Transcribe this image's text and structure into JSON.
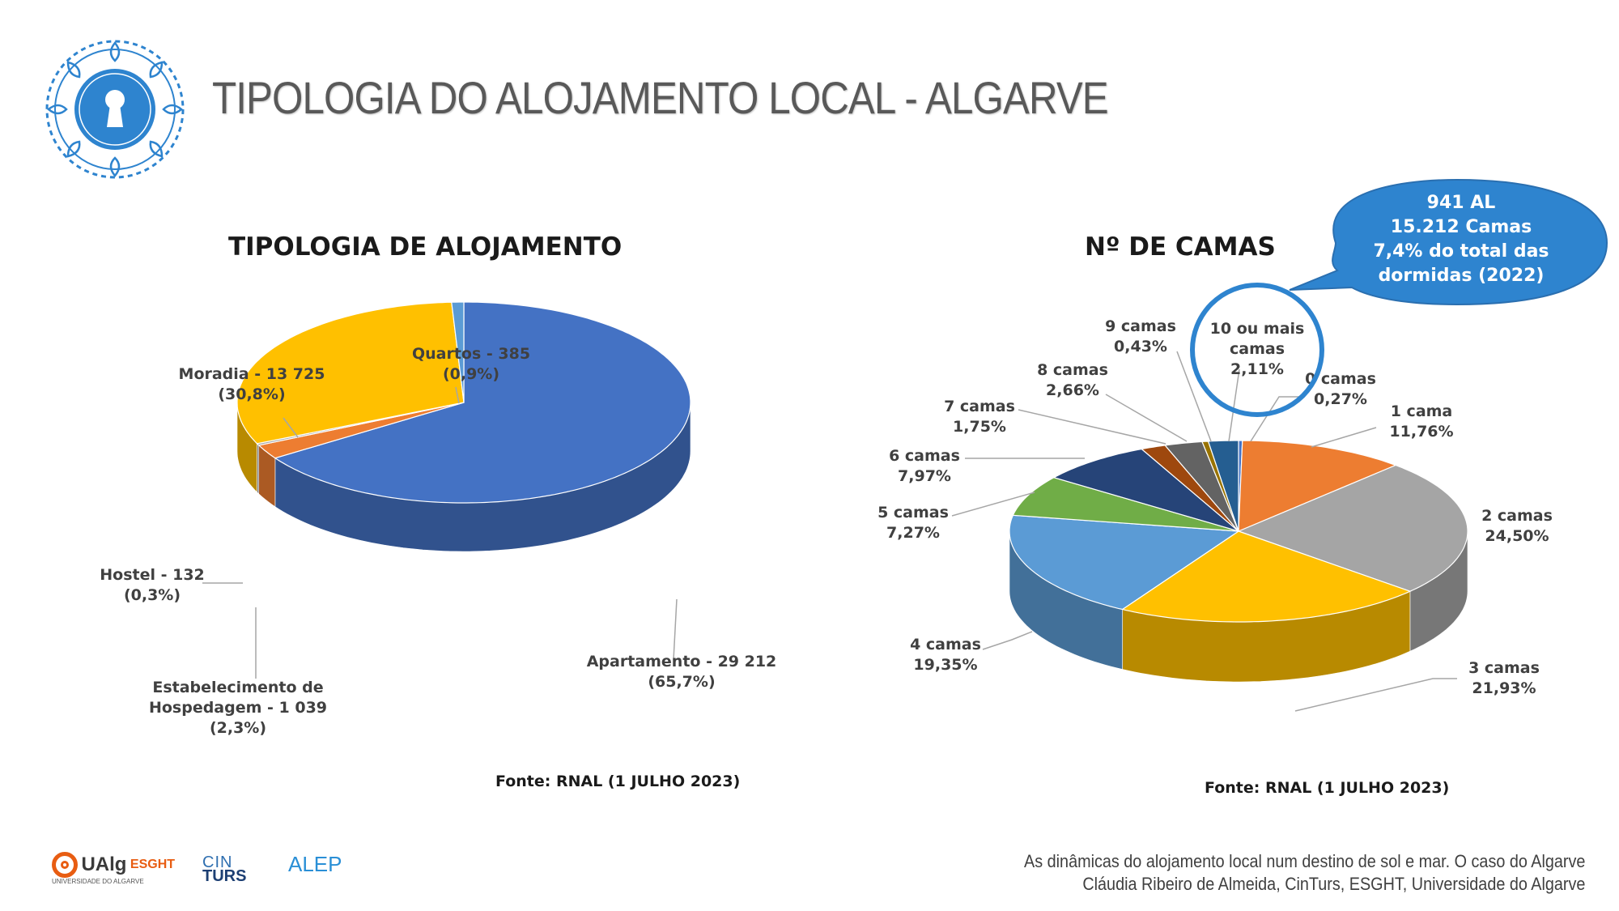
{
  "slide": {
    "title": "TIPOLOGIA DO ALOJAMENTO LOCAL - ALGARVE",
    "citation_line1": "As dinâmicas do alojamento local num destino de sol e mar. O caso do Algarve",
    "citation_line2": "Cláudia Ribeiro de Almeida, CinTurs, ESGHT, Universidade do Algarve"
  },
  "logos": {
    "ualg_name": "UAlg",
    "ualg_school": "ESGHT",
    "ualg_sub": "UNIVERSIDADE DO ALGARVE",
    "cinturs_top": "CIN",
    "cinturs_bottom": "TURS",
    "alep": "ALEP"
  },
  "bubble": {
    "line1": "941 AL",
    "line2": "15.212 Camas",
    "line3": "7,4% do total das",
    "line4": "dormidas (2022)"
  },
  "colors": {
    "blue": "#4472C4",
    "orange": "#ED7D31",
    "gray": "#A5A5A5",
    "gold": "#FFC000",
    "lightblue": "#5B9BD5",
    "green": "#70AD47",
    "navy": "#264478",
    "brown": "#9E480E",
    "darkgray": "#636363",
    "darkgold": "#997300",
    "steel": "#255E91",
    "callout": "#2E84CF"
  },
  "chart_data": [
    {
      "type": "pie",
      "title": "TIPOLOGIA DE ALOJAMENTO",
      "source": "Fonte: RNAL (1 JULHO 2023)",
      "categories": [
        "Apartamento",
        "Estabelecimento de Hospedagem",
        "Hostel",
        "Moradia",
        "Quartos"
      ],
      "values": [
        29212,
        1039,
        132,
        13725,
        385
      ],
      "percent": [
        65.7,
        2.3,
        0.3,
        30.8,
        0.9
      ],
      "labels": [
        [
          "Apartamento -  29 212",
          "(65,7%)"
        ],
        [
          "Estabelecimento de",
          "Hospedagem -  1 039",
          "(2,3%)"
        ],
        [
          "Hostel -  132",
          "(0,3%)"
        ],
        [
          "Moradia -  13 725",
          "(30,8%)"
        ],
        [
          "Quartos -  385",
          "(0,9%)"
        ]
      ]
    },
    {
      "type": "pie",
      "title": "Nº DE CAMAS",
      "source": "Fonte: RNAL (1 JULHO 2023)",
      "categories": [
        "0 camas",
        "1 cama",
        "2 camas",
        "3 camas",
        "4 camas",
        "5 camas",
        "6 camas",
        "7 camas",
        "8 camas",
        "9 camas",
        "10 ou mais camas"
      ],
      "values": [
        0.27,
        11.76,
        24.5,
        21.93,
        19.35,
        7.27,
        7.97,
        1.75,
        2.66,
        0.43,
        2.11
      ],
      "labels": [
        [
          "0 camas",
          "0,27%"
        ],
        [
          "1 cama",
          "11,76%"
        ],
        [
          "2 camas",
          "24,50%"
        ],
        [
          "3 camas",
          "21,93%"
        ],
        [
          "4 camas",
          "19,35%"
        ],
        [
          "5 camas",
          "7,27%"
        ],
        [
          "6 camas",
          "7,97%"
        ],
        [
          "7 camas",
          "1,75%"
        ],
        [
          "8 camas",
          "2,66%"
        ],
        [
          "9 camas",
          "0,43%"
        ],
        [
          "10 ou mais",
          "camas",
          "2,11%"
        ]
      ]
    }
  ]
}
